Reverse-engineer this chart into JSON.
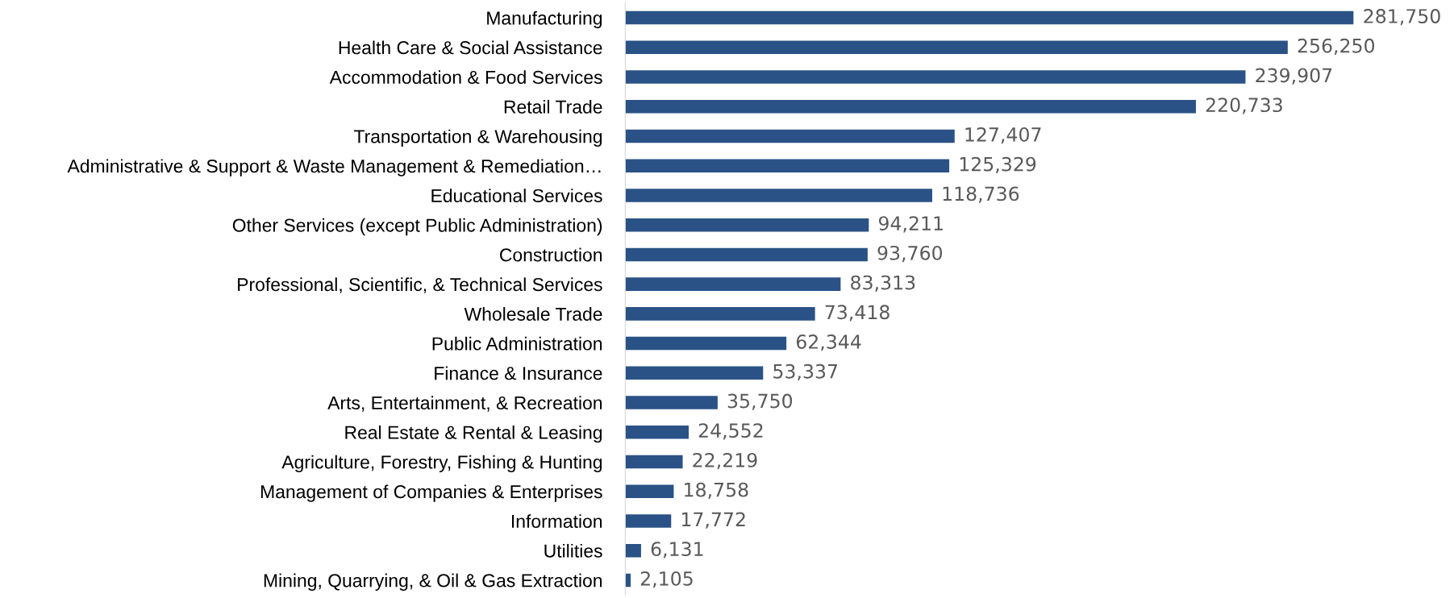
{
  "chart_data": {
    "type": "bar",
    "orientation": "horizontal",
    "color": "#2a5286",
    "grid": false,
    "legend": false,
    "value_labels": [
      "281,750",
      "256,250",
      "239,907",
      "220,733",
      "127,407",
      "125,329",
      "118,736",
      "94,211",
      "93,760",
      "83,313",
      "73,418",
      "62,344",
      "53,337",
      "35,750",
      "24,552",
      "22,219",
      "18,758",
      "17,772",
      "6,131",
      "2,105"
    ],
    "categories": [
      "Manufacturing",
      "Health Care & Social Assistance",
      "Accommodation & Food Services",
      "Retail Trade",
      "Transportation & Warehousing",
      "Administrative & Support & Waste Management & Remediation…",
      "Educational Services",
      "Other Services (except Public Administration)",
      "Construction",
      "Professional, Scientific, & Technical Services",
      "Wholesale Trade",
      "Public Administration",
      "Finance & Insurance",
      "Arts, Entertainment, & Recreation",
      "Real Estate & Rental & Leasing",
      "Agriculture, Forestry, Fishing & Hunting",
      "Management of Companies & Enterprises",
      "Information",
      "Utilities",
      "Mining, Quarrying, & Oil & Gas Extraction"
    ],
    "values": [
      281750,
      256250,
      239907,
      220733,
      127407,
      125329,
      118736,
      94211,
      93760,
      83313,
      73418,
      62344,
      53337,
      35750,
      24552,
      22219,
      18758,
      17772,
      6131,
      2105
    ]
  }
}
